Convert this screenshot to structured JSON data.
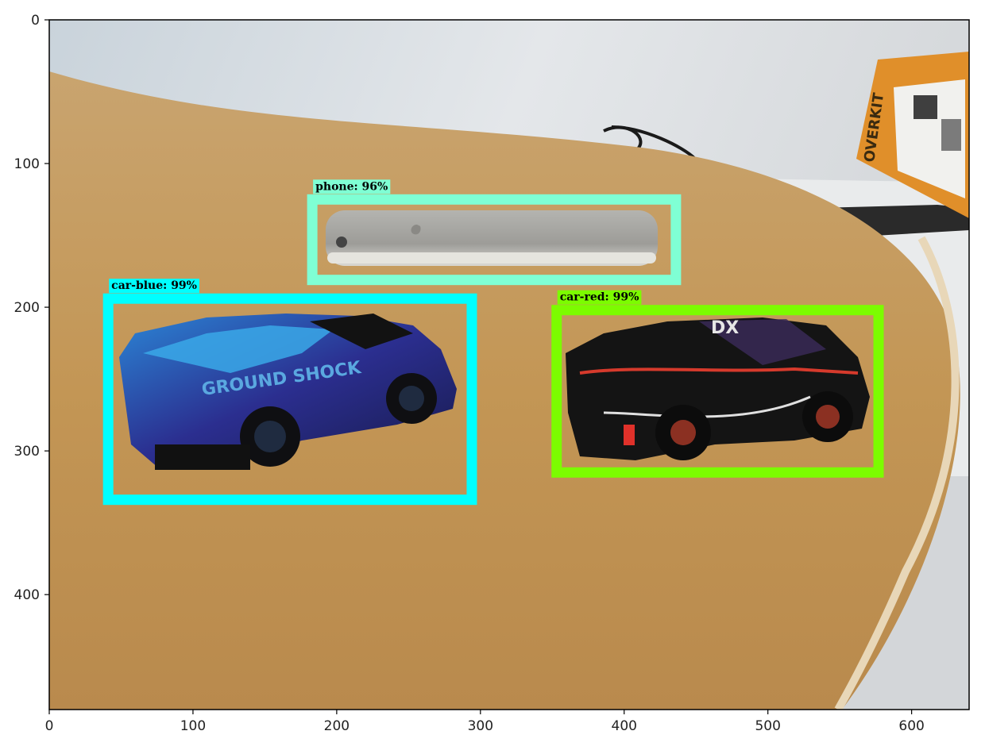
{
  "figure": {
    "image_width": 640,
    "image_height": 480,
    "x_ticks": [
      "0",
      "100",
      "200",
      "300",
      "400",
      "500",
      "600"
    ],
    "y_ticks": [
      "0",
      "100",
      "200",
      "300",
      "400"
    ],
    "x_tick_values": [
      0,
      100,
      200,
      300,
      400,
      500,
      600
    ],
    "y_tick_values": [
      0,
      100,
      200,
      300,
      400
    ]
  },
  "detections": [
    {
      "label": "phone: 96%",
      "box": {
        "xmin": 183,
        "ymin": 125,
        "xmax": 436,
        "ymax": 181
      },
      "color": "#7fffd4"
    },
    {
      "label": "car-blue: 99%",
      "box": {
        "xmin": 41,
        "ymin": 194,
        "xmax": 294,
        "ymax": 334
      },
      "color": "#00ffff"
    },
    {
      "label": "car-red: 99%",
      "box": {
        "xmin": 353,
        "ymin": 202,
        "xmax": 577,
        "ymax": 315
      },
      "color": "#7cfc00"
    }
  ],
  "scene": {
    "box_text": "OVERKIT",
    "car_text": "GROUND SHOCK",
    "car_red_text": "DX"
  },
  "colors": {
    "wall": "#dfe3e6",
    "table": "#c49a60",
    "frame": "#000000"
  }
}
